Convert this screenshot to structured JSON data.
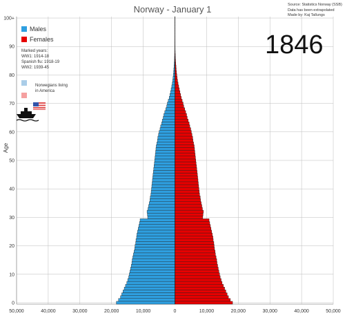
{
  "header": {
    "title": "Norway - January 1",
    "source_lines": [
      "Source: Statistics Norway (SSB)",
      "Data has been extrapolated",
      "Made by: Kaj Tallungs"
    ],
    "year": "1846"
  },
  "legend": {
    "males_label": "Males",
    "females_label": "Females",
    "marked_years_lines": [
      "Marked years:",
      "WW1: 1914-18",
      "Spanish flu: 1918-19",
      "WW2: 1939-45"
    ],
    "america_label_lines": [
      "Norwegians living",
      "in America"
    ]
  },
  "colors": {
    "males": "#2e9fe0",
    "females": "#e60000",
    "america_males": "#aacde8",
    "america_females": "#f5a0a0",
    "bar_border": "#222222",
    "grid": "#bbbbbb",
    "axis": "#999999"
  },
  "icons": {
    "ship": "steamship-icon",
    "flag": "us-flag-icon"
  },
  "chart_data": {
    "type": "bar",
    "orientation": "horizontal-population-pyramid",
    "title": "Norway - January 1",
    "ylabel": "Age",
    "xlabel": "",
    "x_ticks": [
      "50,000",
      "40,000",
      "30,000",
      "20,000",
      "10,000",
      "0",
      "10,000",
      "20,000",
      "30,000",
      "40,000",
      "50,000"
    ],
    "y_ticks": [
      "0",
      "10",
      "20",
      "30",
      "40",
      "50",
      "60",
      "70",
      "80",
      "90",
      "100+"
    ],
    "xlim": [
      -50000,
      50000
    ],
    "ylim": [
      0,
      100
    ],
    "grid": true,
    "legend_position": "top-left",
    "ages": [
      0,
      1,
      2,
      3,
      4,
      5,
      6,
      7,
      8,
      9,
      10,
      11,
      12,
      13,
      14,
      15,
      16,
      17,
      18,
      19,
      20,
      21,
      22,
      23,
      24,
      25,
      26,
      27,
      28,
      29,
      30,
      31,
      32,
      33,
      34,
      35,
      36,
      37,
      38,
      39,
      40,
      41,
      42,
      43,
      44,
      45,
      46,
      47,
      48,
      49,
      50,
      51,
      52,
      53,
      54,
      55,
      56,
      57,
      58,
      59,
      60,
      61,
      62,
      63,
      64,
      65,
      66,
      67,
      68,
      69,
      70,
      71,
      72,
      73,
      74,
      75,
      76,
      77,
      78,
      79,
      80,
      81,
      82,
      83,
      84,
      85,
      86,
      87,
      88,
      89,
      90,
      91,
      92,
      93,
      94,
      95,
      96,
      97,
      98,
      99,
      100
    ],
    "series": [
      {
        "name": "Males",
        "values": [
          18500,
          17800,
          17200,
          16800,
          16400,
          16000,
          15600,
          15200,
          14900,
          14600,
          14400,
          14200,
          14000,
          13800,
          13600,
          13500,
          13300,
          13100,
          12900,
          12700,
          12600,
          12400,
          12300,
          12100,
          12000,
          11800,
          11600,
          11400,
          11200,
          11000,
          8600,
          8700,
          8800,
          8500,
          8300,
          8100,
          7900,
          7800,
          7600,
          7500,
          7400,
          7300,
          7200,
          7100,
          7000,
          6900,
          6800,
          6700,
          6600,
          6500,
          6400,
          6300,
          6200,
          6100,
          6000,
          5900,
          5700,
          5500,
          5400,
          5200,
          5000,
          4700,
          4500,
          4200,
          4000,
          3700,
          3500,
          3200,
          2900,
          2600,
          2400,
          2100,
          1800,
          1600,
          1400,
          1200,
          1000,
          850,
          700,
          600,
          500,
          420,
          350,
          290,
          230,
          180,
          140,
          110,
          80,
          60,
          40,
          30,
          20,
          15,
          10,
          8,
          5,
          4,
          3,
          2,
          1
        ]
      },
      {
        "name": "Females",
        "values": [
          18200,
          17500,
          16900,
          16500,
          16100,
          15700,
          15300,
          14900,
          14600,
          14300,
          14100,
          13900,
          13700,
          13500,
          13300,
          13200,
          13000,
          12800,
          12700,
          12500,
          12400,
          12300,
          12100,
          12000,
          11800,
          11600,
          11400,
          11200,
          11000,
          10800,
          8800,
          8900,
          9000,
          8700,
          8500,
          8300,
          8100,
          8000,
          7800,
          7700,
          7600,
          7500,
          7400,
          7300,
          7200,
          7100,
          7000,
          6900,
          6800,
          6700,
          6600,
          6500,
          6400,
          6300,
          6200,
          6100,
          5900,
          5700,
          5600,
          5400,
          5200,
          5000,
          4700,
          4500,
          4200,
          3900,
          3700,
          3400,
          3100,
          2800,
          2600,
          2300,
          2000,
          1800,
          1600,
          1400,
          1200,
          1000,
          850,
          720,
          600,
          500,
          420,
          350,
          280,
          220,
          170,
          130,
          95,
          70,
          50,
          35,
          25,
          18,
          12,
          9,
          6,
          4,
          3,
          2,
          1
        ]
      },
      {
        "name": "Norwegians living in America (males)",
        "values": [
          0,
          0,
          0,
          0,
          0,
          0,
          0,
          0,
          0,
          0,
          0,
          0,
          0,
          0,
          0,
          0,
          0,
          0,
          0,
          0,
          0,
          0,
          0,
          0,
          0,
          0,
          0,
          0,
          0,
          0,
          0,
          0,
          0,
          0,
          0,
          0,
          0,
          0,
          0,
          0,
          0,
          0,
          0,
          0,
          0,
          0,
          0,
          0,
          0,
          0,
          0,
          0,
          0,
          0,
          0,
          0,
          0,
          0,
          0,
          0,
          0,
          0,
          0,
          0,
          0,
          0,
          0,
          0,
          0,
          0,
          0,
          0,
          0,
          0,
          0,
          0,
          0,
          0,
          0,
          0,
          0,
          0,
          0,
          0,
          0,
          0,
          0,
          0,
          0,
          0,
          0,
          0,
          0,
          0,
          0,
          0,
          0,
          0,
          0,
          0,
          0
        ]
      },
      {
        "name": "Norwegians living in America (females)",
        "values": [
          0,
          0,
          0,
          0,
          0,
          0,
          0,
          0,
          0,
          0,
          0,
          0,
          0,
          0,
          0,
          0,
          0,
          0,
          0,
          0,
          0,
          0,
          0,
          0,
          0,
          0,
          0,
          0,
          0,
          0,
          0,
          0,
          0,
          0,
          0,
          0,
          0,
          0,
          0,
          0,
          0,
          0,
          0,
          0,
          0,
          0,
          0,
          0,
          0,
          0,
          0,
          0,
          0,
          0,
          0,
          0,
          0,
          0,
          0,
          0,
          0,
          0,
          0,
          0,
          0,
          0,
          0,
          0,
          0,
          0,
          0,
          0,
          0,
          0,
          0,
          0,
          0,
          0,
          0,
          0,
          0,
          0,
          0,
          0,
          0,
          0,
          0,
          0,
          0,
          0,
          0,
          0,
          0,
          0,
          0,
          0,
          0,
          0,
          0,
          0,
          0
        ]
      }
    ]
  }
}
